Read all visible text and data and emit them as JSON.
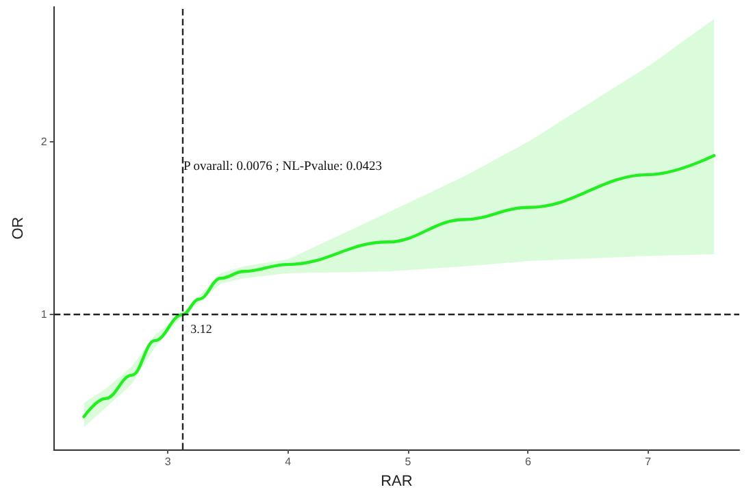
{
  "chart_data": {
    "type": "line",
    "xlabel": "RAR",
    "ylabel": "OR",
    "annotations": [
      "P ovarall: 0.0076 ; NL-Pvalue: 0.0423"
    ],
    "x": [
      2.3,
      2.48,
      2.7,
      2.89,
      3.12,
      3.26,
      3.44,
      3.63,
      4.0,
      4.83,
      5.47,
      6.0,
      7.01,
      7.55
    ],
    "series": [
      {
        "color": "#22ee22",
        "values": [
          0.41,
          0.515,
          0.65,
          0.85,
          1.0,
          1.09,
          1.21,
          1.25,
          1.29,
          1.42,
          1.55,
          1.62,
          1.81,
          1.92
        ],
        "lower": [
          0.35,
          0.46,
          0.6,
          0.81,
          0.99,
          1.07,
          1.18,
          1.21,
          1.24,
          1.25,
          1.28,
          1.31,
          1.34,
          1.35
        ],
        "upper": [
          0.49,
          0.57,
          0.7,
          0.88,
          1.01,
          1.11,
          1.24,
          1.28,
          1.32,
          1.59,
          1.8,
          2.0,
          2.44,
          2.71
        ]
      }
    ],
    "xlim": [
      2.05,
      7.76
    ],
    "xticks": [
      3,
      4,
      5,
      6,
      7
    ],
    "ylim": [
      0.22,
      2.78
    ],
    "yticks": [
      1,
      2
    ],
    "ref_lines": [
      {
        "axis": "x",
        "value": 3.12,
        "label": "3.12",
        "line_style": "dashed"
      },
      {
        "axis": "y",
        "value": 1,
        "label": null,
        "line_style": "dashed"
      }
    ],
    "marker": "none",
    "line_style": "solid"
  }
}
